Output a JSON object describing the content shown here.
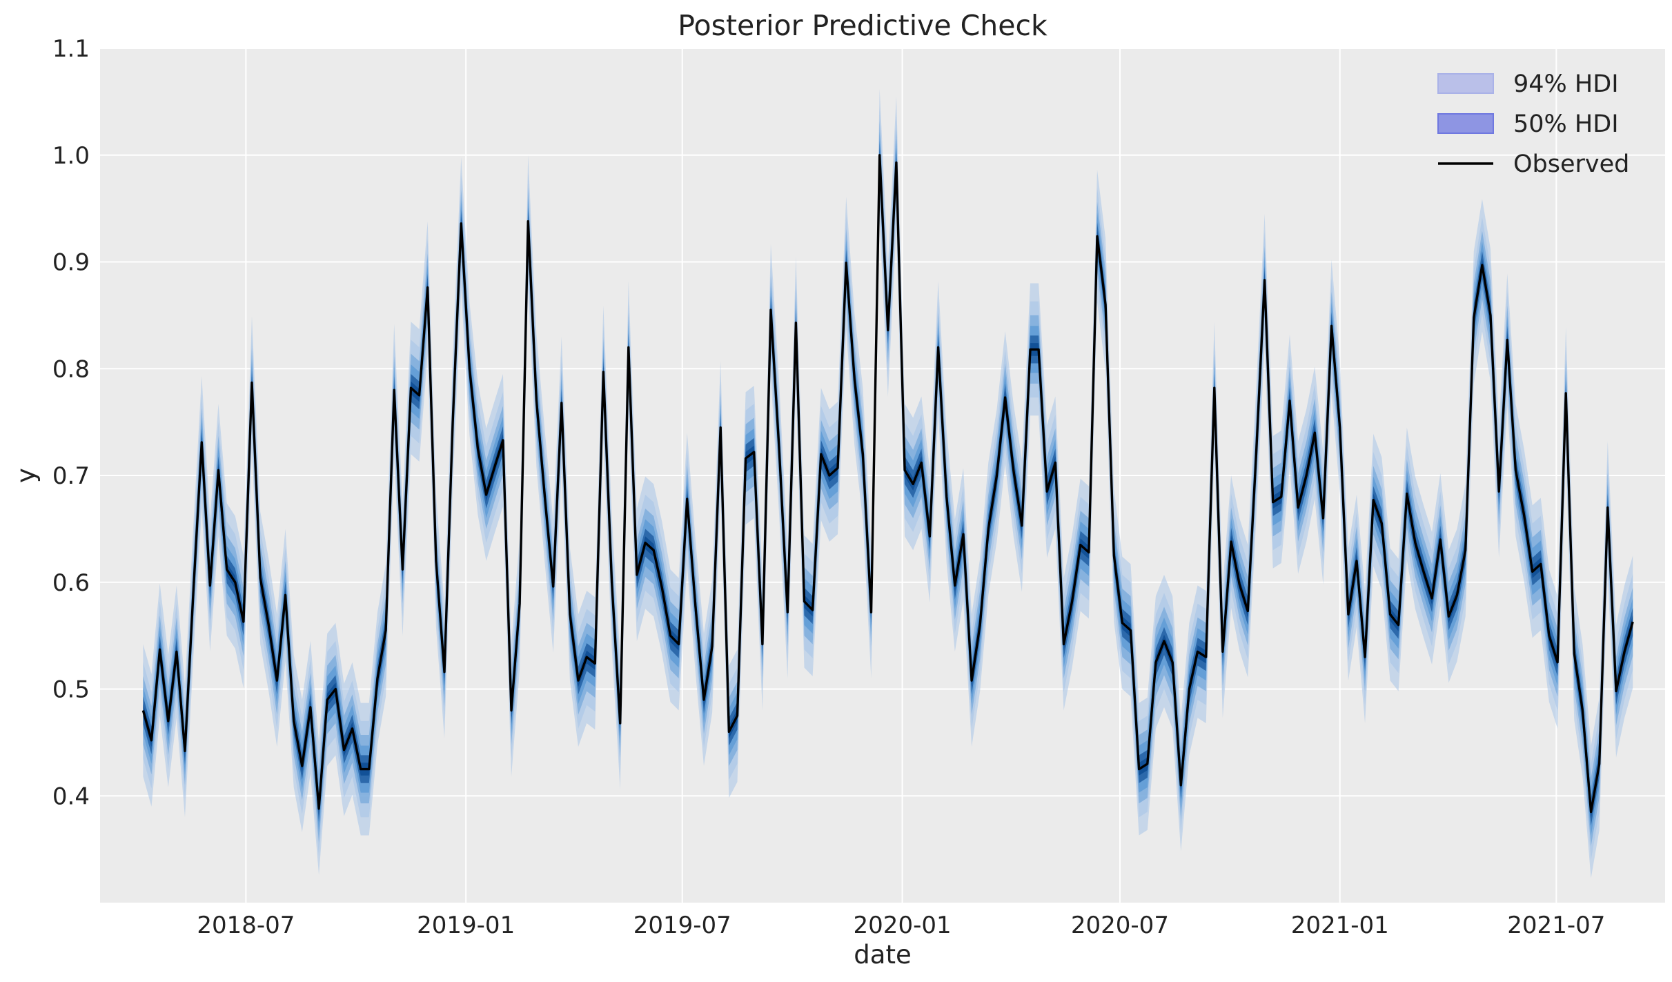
{
  "chart_data": {
    "type": "line",
    "title": "Posterior Predictive Check",
    "xlabel": "date",
    "ylabel": "y",
    "ylim": [
      0.3,
      1.1
    ],
    "xlim": [
      "2018-03-01",
      "2021-09-30"
    ],
    "x_tick_labels": [
      "2018-07",
      "2019-01",
      "2019-07",
      "2020-01",
      "2020-07",
      "2021-01",
      "2021-07"
    ],
    "y_tick_labels": [
      "0.4",
      "0.5",
      "0.6",
      "0.7",
      "0.8",
      "0.9",
      "1.0",
      "1.1"
    ],
    "grid": true,
    "legend_position": "top-right",
    "colors": {
      "background": "#ebebeb",
      "grid": "#ffffff",
      "hdi94": "#aab2e8",
      "hdi50": "#6f78e0",
      "band_light": "#a8c4e8",
      "band_mid": "#4f92d2",
      "band_dark": "#0e4d93",
      "observed": "#000000"
    },
    "legend": [
      {
        "label": "94% HDI",
        "kind": "hdi94"
      },
      {
        "label": "50% HDI",
        "kind": "hdi50"
      },
      {
        "label": "Observed",
        "kind": "line"
      }
    ],
    "series": [
      {
        "name": "Observed",
        "start_date": "2018-04-06",
        "interval_days": 7,
        "values": [
          0.48,
          0.452,
          0.537,
          0.47,
          0.535,
          0.442,
          0.59,
          0.731,
          0.597,
          0.705,
          0.612,
          0.6,
          0.563,
          0.787,
          0.604,
          0.56,
          0.508,
          0.588,
          0.47,
          0.428,
          0.483,
          0.388,
          0.49,
          0.5,
          0.443,
          0.463,
          0.425,
          0.425,
          0.51,
          0.555,
          0.78,
          0.612,
          0.782,
          0.775,
          0.876,
          0.62,
          0.516,
          0.75,
          0.936,
          0.8,
          0.725,
          0.682,
          0.708,
          0.733,
          0.48,
          0.58,
          0.938,
          0.77,
          0.68,
          0.596,
          0.768,
          0.57,
          0.508,
          0.53,
          0.524,
          0.797,
          0.6,
          0.468,
          0.82,
          0.607,
          0.637,
          0.63,
          0.595,
          0.55,
          0.542,
          0.678,
          0.578,
          0.49,
          0.54,
          0.745,
          0.46,
          0.475,
          0.716,
          0.722,
          0.542,
          0.855,
          0.725,
          0.572,
          0.843,
          0.582,
          0.574,
          0.72,
          0.7,
          0.707,
          0.899,
          0.79,
          0.72,
          0.572,
          1.0,
          0.836,
          0.993,
          0.705,
          0.692,
          0.712,
          0.643,
          0.82,
          0.68,
          0.597,
          0.645,
          0.508,
          0.56,
          0.65,
          0.7,
          0.773,
          0.705,
          0.653,
          0.818,
          0.818,
          0.685,
          0.712,
          0.542,
          0.582,
          0.635,
          0.628,
          0.924,
          0.86,
          0.625,
          0.562,
          0.555,
          0.425,
          0.43,
          0.525,
          0.545,
          0.525,
          0.41,
          0.5,
          0.535,
          0.53,
          0.782,
          0.535,
          0.638,
          0.598,
          0.573,
          0.72,
          0.883,
          0.675,
          0.68,
          0.77,
          0.67,
          0.7,
          0.74,
          0.66,
          0.84,
          0.745,
          0.57,
          0.62,
          0.53,
          0.677,
          0.655,
          0.57,
          0.56,
          0.683,
          0.637,
          0.61,
          0.585,
          0.64,
          0.568,
          0.588,
          0.63,
          0.848,
          0.897,
          0.85,
          0.685,
          0.827,
          0.705,
          0.663,
          0.61,
          0.617,
          0.55,
          0.525,
          0.777,
          0.533,
          0.48,
          0.385,
          0.43,
          0.67,
          0.498,
          0.535,
          0.563
        ]
      }
    ]
  }
}
